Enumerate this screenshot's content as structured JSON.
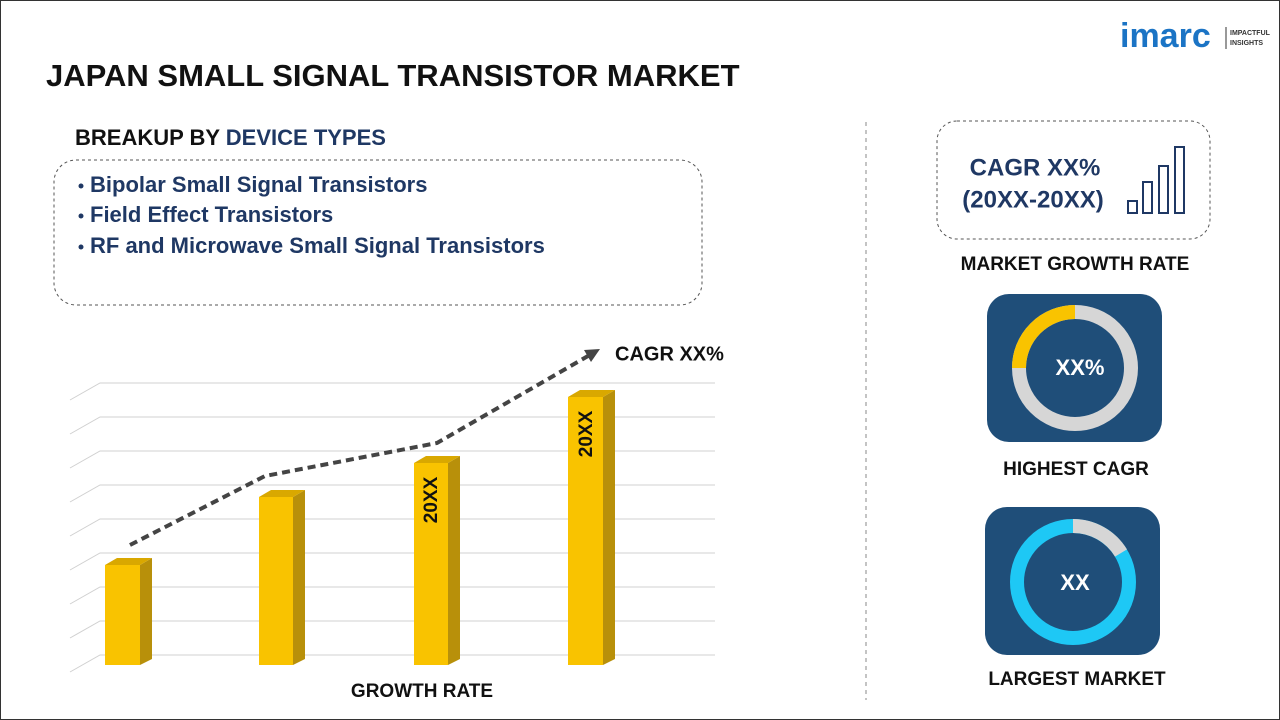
{
  "header": {
    "title": "JAPAN SMALL SIGNAL TRANSISTOR MARKET",
    "logo": "imarc",
    "logo_tagline": [
      "IMPACTFUL",
      "INSIGHTS"
    ]
  },
  "breakup": {
    "label": "BREAKUP BY",
    "highlight": "DEVICE TYPES",
    "items": [
      "Bipolar Small Signal Transistors",
      "Field Effect Transistors",
      "RF and Microwave Small Signal Transistors"
    ]
  },
  "growth_chart": {
    "bar_labels": [
      "20XX",
      "20XX"
    ],
    "cagr": "CAGR XX%",
    "axis_label": "GROWTH RATE"
  },
  "sidebar": {
    "cagr_box": {
      "line1": "CAGR XX%",
      "line2": "(20XX-20XX)"
    },
    "market_growth_label": "MARKET GROWTH RATE",
    "highest_cagr": {
      "value": "XX%",
      "label": "HIGHEST CAGR"
    },
    "largest_market": {
      "value": "XX",
      "label": "LARGEST MARKET"
    }
  }
}
